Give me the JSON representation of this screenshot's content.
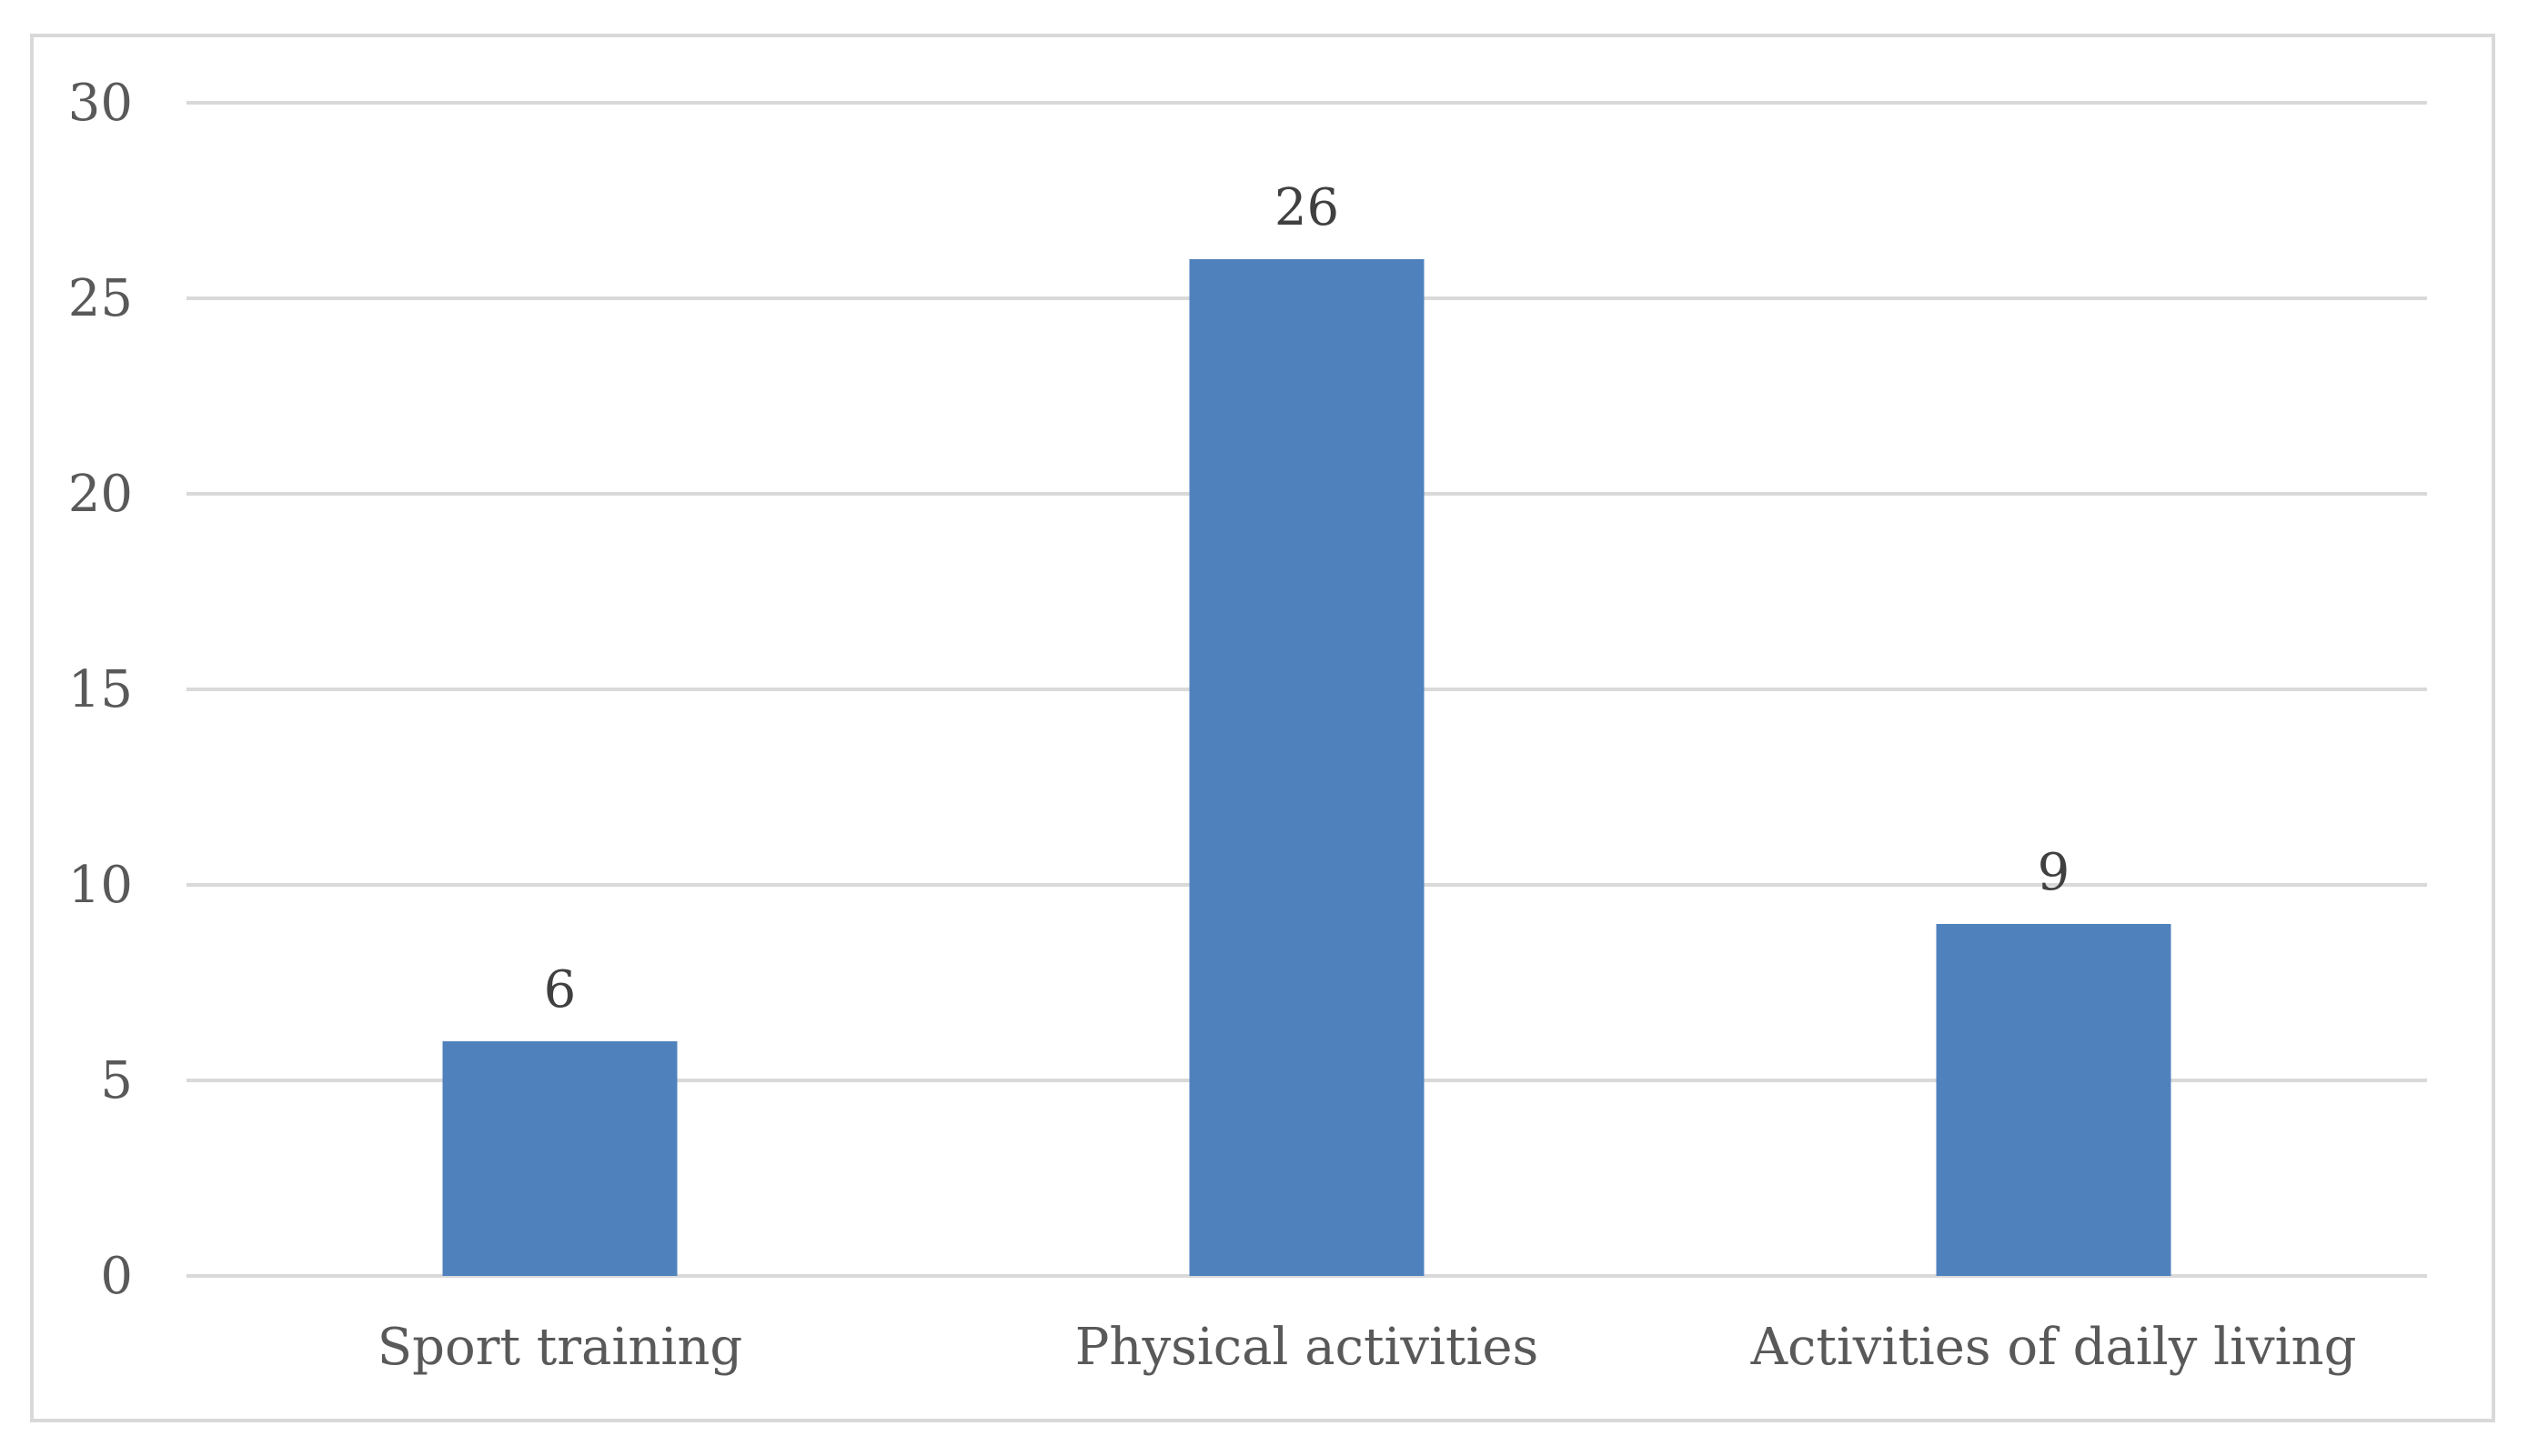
{
  "chart_data": {
    "type": "bar",
    "title": "",
    "xlabel": "",
    "ylabel": "",
    "categories": [
      "Sport training",
      "Physical activities",
      "Activities of daily living"
    ],
    "values": [
      6,
      26,
      9
    ],
    "data_labels": [
      "6",
      "26",
      "9"
    ],
    "ylim": [
      0,
      30
    ],
    "yticks": [
      0,
      5,
      10,
      15,
      20,
      25,
      30
    ],
    "ytick_labels": [
      "0",
      "5",
      "10",
      "15",
      "20",
      "25",
      "30"
    ],
    "grid": true,
    "legend": "none",
    "bar_color": "#4f81bd",
    "grid_color": "#d9d9d9"
  }
}
